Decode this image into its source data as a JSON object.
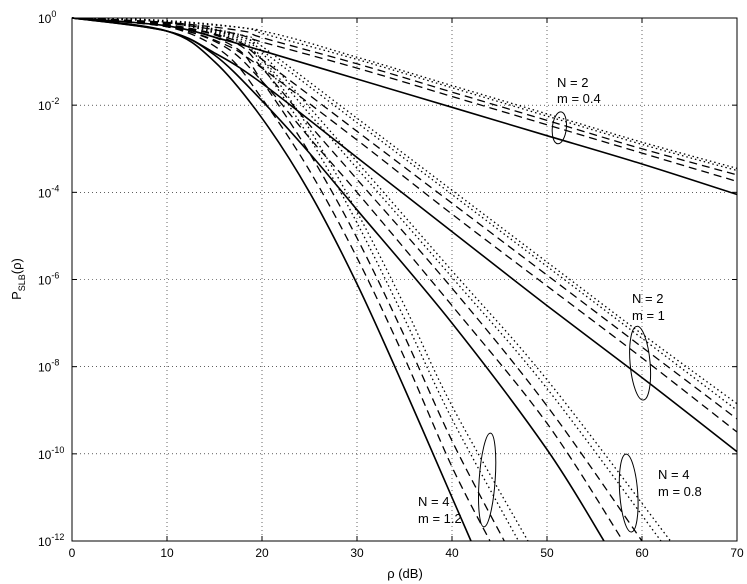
{
  "chart_data": {
    "type": "line",
    "title": "",
    "xlabel": "ρ (dB)",
    "ylabel": "P",
    "ylabel_subscript": "SLB",
    "ylabel_suffix": "(ρ)",
    "xlim": [
      0,
      70
    ],
    "ylim_exponent": [
      -12,
      0
    ],
    "yscale": "log",
    "grid": true,
    "x_ticks": [
      "0",
      "10",
      "20",
      "30",
      "40",
      "50",
      "60",
      "70"
    ],
    "y_ticks": [
      {
        "base": "10",
        "exp": "0"
      },
      {
        "base": "10",
        "exp": "-2"
      },
      {
        "base": "10",
        "exp": "-4"
      },
      {
        "base": "10",
        "exp": "-6"
      },
      {
        "base": "10",
        "exp": "-8"
      },
      {
        "base": "10",
        "exp": "-10"
      },
      {
        "base": "10",
        "exp": "-12"
      }
    ],
    "groups": [
      {
        "N": 2,
        "m": 0.4,
        "series": [
          {
            "style": "solid",
            "x": [
              0,
              10,
              16,
              20,
              30,
              40,
              50,
              60,
              70
            ],
            "y_log10": [
              0,
              -0.18,
              -0.5,
              -0.75,
              -1.4,
              -2.05,
              -2.7,
              -3.35,
              -4.05
            ]
          },
          {
            "style": "dashed",
            "x": [
              0,
              10,
              17,
              20,
              30,
              40,
              50,
              60,
              70
            ],
            "y_log10": [
              0,
              -0.12,
              -0.35,
              -0.55,
              -1.15,
              -1.8,
              -2.45,
              -3.1,
              -3.75
            ]
          },
          {
            "style": "dashed",
            "x": [
              0,
              10,
              18,
              20,
              30,
              40,
              50,
              60,
              70
            ],
            "y_log10": [
              0,
              -0.1,
              -0.3,
              -0.45,
              -1.05,
              -1.7,
              -2.35,
              -3.0,
              -3.6
            ]
          },
          {
            "style": "dotted",
            "x": [
              0,
              10,
              19,
              20,
              30,
              40,
              50,
              60,
              70
            ],
            "y_log10": [
              0,
              -0.08,
              -0.25,
              -0.35,
              -0.95,
              -1.6,
              -2.25,
              -2.9,
              -3.5
            ]
          },
          {
            "style": "dotted",
            "x": [
              0,
              10,
              20,
              30,
              40,
              50,
              60,
              70
            ],
            "y_log10": [
              0,
              -0.06,
              -0.3,
              -0.9,
              -1.55,
              -2.2,
              -2.85,
              -3.45
            ]
          }
        ]
      },
      {
        "N": 2,
        "m": 1,
        "series": [
          {
            "style": "solid",
            "x": [
              0,
              10,
              15,
              20,
              30,
              40,
              50,
              60,
              70
            ],
            "y_log10": [
              0,
              -0.3,
              -0.8,
              -1.5,
              -3.2,
              -4.9,
              -6.6,
              -8.25,
              -9.95
            ]
          },
          {
            "style": "dashed",
            "x": [
              0,
              10,
              16,
              20,
              30,
              40,
              50,
              60,
              70
            ],
            "y_log10": [
              0,
              -0.2,
              -0.6,
              -1.15,
              -2.8,
              -4.5,
              -6.15,
              -7.8,
              -9.5
            ]
          },
          {
            "style": "dashed",
            "x": [
              0,
              10,
              17,
              20,
              30,
              40,
              50,
              60,
              70
            ],
            "y_log10": [
              0,
              -0.15,
              -0.5,
              -0.95,
              -2.6,
              -4.25,
              -5.9,
              -7.55,
              -9.2
            ]
          },
          {
            "style": "dotted",
            "x": [
              0,
              10,
              18,
              20,
              30,
              40,
              50,
              60,
              70
            ],
            "y_log10": [
              0,
              -0.1,
              -0.45,
              -0.75,
              -2.4,
              -4.05,
              -5.7,
              -7.35,
              -9.0
            ]
          },
          {
            "style": "dotted",
            "x": [
              0,
              10,
              18,
              20,
              30,
              40,
              50,
              60,
              70
            ],
            "y_log10": [
              0,
              -0.08,
              -0.4,
              -0.65,
              -2.3,
              -3.95,
              -5.6,
              -7.25,
              -8.85
            ]
          }
        ]
      },
      {
        "N": 4,
        "m": 0.8,
        "series": [
          {
            "style": "solid",
            "x": [
              0,
              10,
              15,
              20,
              25,
              30,
              40,
              50,
              56
            ],
            "y_log10": [
              0,
              -0.3,
              -0.85,
              -1.9,
              -3.1,
              -4.4,
              -7.0,
              -9.9,
              -12
            ]
          },
          {
            "style": "dashed",
            "x": [
              0,
              10,
              16,
              20,
              25,
              30,
              40,
              50,
              58
            ],
            "y_log10": [
              0,
              -0.2,
              -0.65,
              -1.45,
              -2.75,
              -4.0,
              -6.6,
              -9.3,
              -12
            ]
          },
          {
            "style": "dashed",
            "x": [
              0,
              10,
              17,
              20,
              25,
              30,
              40,
              50,
              60
            ],
            "y_log10": [
              0,
              -0.15,
              -0.55,
              -1.15,
              -2.45,
              -3.7,
              -6.2,
              -8.9,
              -12
            ]
          },
          {
            "style": "dotted",
            "x": [
              0,
              10,
              17,
              20,
              25,
              30,
              40,
              50,
              62
            ],
            "y_log10": [
              0,
              -0.1,
              -0.5,
              -0.95,
              -2.2,
              -3.45,
              -5.95,
              -8.5,
              -12
            ]
          },
          {
            "style": "dotted",
            "x": [
              0,
              10,
              18,
              20,
              25,
              30,
              40,
              50,
              63
            ],
            "y_log10": [
              0,
              -0.08,
              -0.45,
              -0.8,
              -2.05,
              -3.3,
              -5.8,
              -8.3,
              -12
            ]
          }
        ]
      },
      {
        "N": 4,
        "m": 1.2,
        "series": [
          {
            "style": "solid",
            "x": [
              0,
              10,
              15,
              20,
              25,
              30,
              35,
              40,
              42
            ],
            "y_log10": [
              0,
              -0.3,
              -1.0,
              -2.3,
              -4.0,
              -6.1,
              -8.5,
              -11.0,
              -12
            ]
          },
          {
            "style": "dashed",
            "x": [
              0,
              10,
              16,
              20,
              25,
              30,
              35,
              40,
              44
            ],
            "y_log10": [
              0,
              -0.2,
              -0.8,
              -1.85,
              -3.5,
              -5.5,
              -7.8,
              -10.3,
              -12
            ]
          },
          {
            "style": "dashed",
            "x": [
              0,
              10,
              17,
              20,
              25,
              30,
              35,
              40,
              45.5
            ],
            "y_log10": [
              0,
              -0.15,
              -0.65,
              -1.45,
              -3.1,
              -5.05,
              -7.3,
              -9.7,
              -12
            ]
          },
          {
            "style": "dotted",
            "x": [
              0,
              10,
              18,
              20,
              25,
              30,
              35,
              40,
              47
            ],
            "y_log10": [
              0,
              -0.1,
              -0.55,
              -1.1,
              -2.75,
              -4.7,
              -6.9,
              -9.2,
              -12
            ]
          },
          {
            "style": "dotted",
            "x": [
              0,
              10,
              18,
              20,
              25,
              30,
              35,
              40,
              48
            ],
            "y_log10": [
              0,
              -0.08,
              -0.5,
              -0.95,
              -2.55,
              -4.45,
              -6.6,
              -8.9,
              -12
            ]
          }
        ]
      }
    ],
    "annotations": [
      {
        "line1": "N = 2",
        "line2": "m = 0.4"
      },
      {
        "line1": "N = 2",
        "line2": "m = 1"
      },
      {
        "line1": "N = 4",
        "line2": "m = 0.8"
      },
      {
        "line1": "N = 4",
        "line2": "m = 1.2"
      }
    ]
  }
}
